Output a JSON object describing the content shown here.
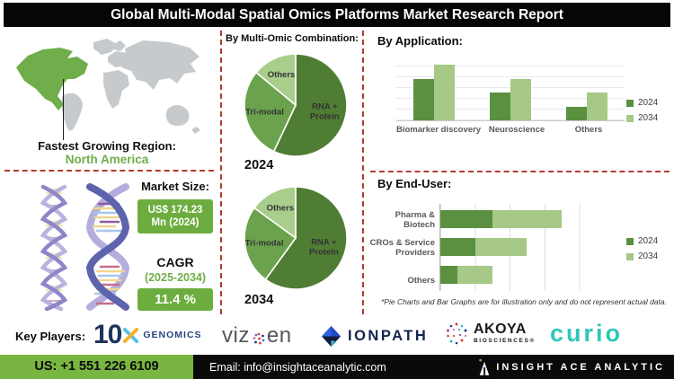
{
  "title": "Global Multi-Modal Spatial Omics Platforms Market Research Report",
  "region": {
    "label": "Fastest Growing Region:",
    "value": "North America",
    "highlight_color": "#6fae4a",
    "land_color": "#c7cacc"
  },
  "market": {
    "size_label": "Market Size:",
    "size_value": "US$ 174.23 Mn (2024)",
    "cagr_label": "CAGR",
    "cagr_period": "(2025-2034)",
    "cagr_value": "11.4 %",
    "box_color": "#6dad3f"
  },
  "chart_data": [
    {
      "type": "pie",
      "title": "By Multi-Omic Combination:",
      "caption": "2024",
      "labels": [
        "RNA +\nProtein",
        "Tri-modal",
        "Others"
      ],
      "values": [
        57,
        29,
        14
      ],
      "colors": [
        "#4e7d33",
        "#6ba24d",
        "#a9ce8c"
      ]
    },
    {
      "type": "pie",
      "title": "By Multi-Omic Combination:",
      "caption": "2034",
      "labels": [
        "RNA +\nProtein",
        "Tri-modal",
        "Others"
      ],
      "values": [
        60,
        25,
        15
      ],
      "colors": [
        "#4e7d33",
        "#6ba24d",
        "#a9ce8c"
      ]
    },
    {
      "type": "bar",
      "title": "By Application:",
      "categories": [
        "Biomarker discovery",
        "Neuroscience",
        "Others"
      ],
      "series": [
        {
          "name": "2024",
          "color": "#5b9041",
          "values": [
            64,
            43,
            21
          ]
        },
        {
          "name": "2034",
          "color": "#a6c987",
          "values": [
            86,
            64,
            43
          ]
        }
      ],
      "ylim": [
        0,
        100
      ],
      "grid": true,
      "legend_position": "right"
    },
    {
      "type": "bar-horizontal-stacked",
      "title": "By End-User:",
      "categories": [
        "Pharma & Biotech",
        "CROs & Service Providers",
        "Others"
      ],
      "series": [
        {
          "name": "2024",
          "color": "#5b9041",
          "values": [
            1.5,
            1.0,
            0.5
          ]
        },
        {
          "name": "2034",
          "color": "#a6c987",
          "values": [
            2.0,
            1.5,
            1.0
          ]
        }
      ],
      "xlim": [
        0,
        5
      ],
      "grid": true,
      "legend_position": "right"
    }
  ],
  "footnote": "*Pie Charts and Bar Graphs are for illustration only and do not represent actual data.",
  "key_players": {
    "label": "Key Players:",
    "companies": [
      "10x Genomics",
      "Vizgen",
      "IonPath",
      "Akoya Biosciences",
      "Curio"
    ],
    "tenx_num": "10",
    "tenx_suffix": "GENOMICS",
    "vizgen_pre": "viz",
    "vizgen_post": "en",
    "ionpath": "IONPATH",
    "akoya": "AKOYA",
    "akoya_sub": "BIOSCIENCES®",
    "curio": "curio"
  },
  "footer": {
    "phone": "US: +1 551 226 6109",
    "email": "Email: info@insightaceanalytic.com",
    "brand": "INSIGHT ACE ANALYTIC",
    "green_color": "#79b541"
  }
}
